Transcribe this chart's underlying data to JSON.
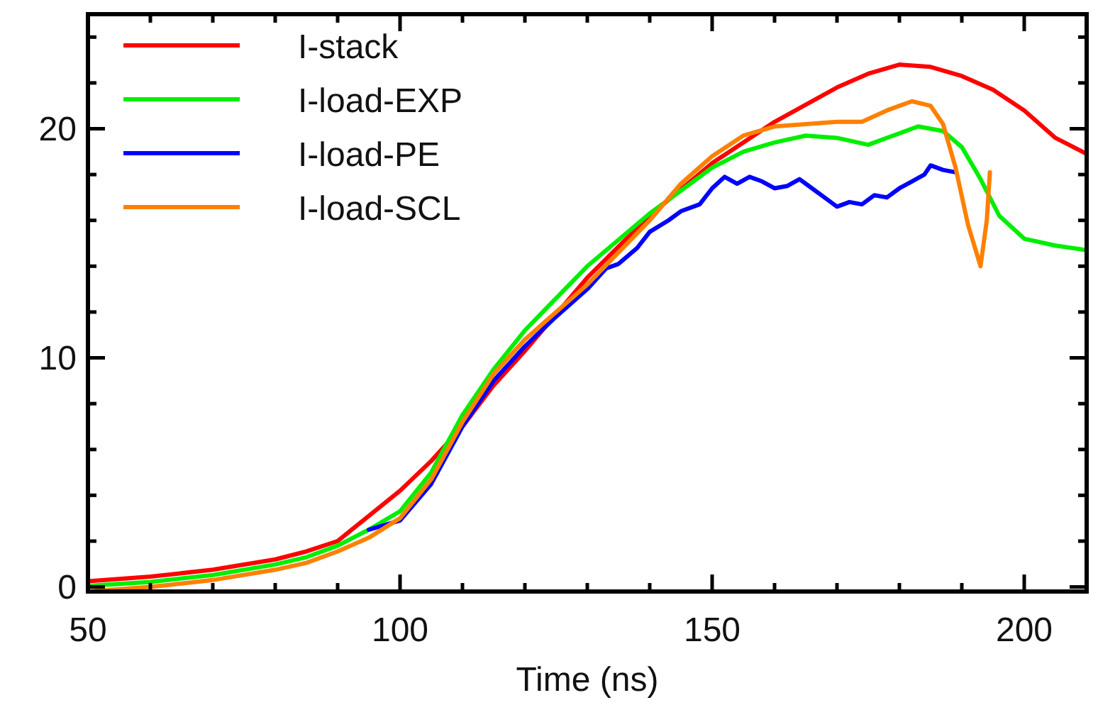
{
  "chart_data": {
    "type": "line",
    "xlabel": "Time (ns)",
    "xlim": [
      50,
      210
    ],
    "xticks": [
      50,
      {
        "value": 60,
        "label": null
      },
      {
        "value": 70,
        "label": null
      },
      {
        "value": 80,
        "label": null
      },
      {
        "value": 90,
        "label": null
      },
      100,
      {
        "value": 110,
        "label": null
      },
      {
        "value": 120,
        "label": null
      },
      {
        "value": 130,
        "label": null
      },
      {
        "value": 140,
        "label": null
      },
      150,
      {
        "value": 160,
        "label": null
      },
      {
        "value": 170,
        "label": null
      },
      {
        "value": 180,
        "label": null
      },
      {
        "value": 190,
        "label": null
      },
      200
    ],
    "ylim": [
      -0.2,
      25
    ],
    "yticks": [
      0,
      {
        "value": 2,
        "label": null
      },
      {
        "value": 4,
        "label": null
      },
      {
        "value": 6,
        "label": null
      },
      {
        "value": 8,
        "label": null
      },
      10,
      {
        "value": 12,
        "label": null
      },
      {
        "value": 14,
        "label": null
      },
      {
        "value": 16,
        "label": null
      },
      {
        "value": 18,
        "label": null
      },
      20,
      {
        "value": 22,
        "label": null
      },
      {
        "value": 24,
        "label": null
      }
    ],
    "grid": false,
    "legend": "top left",
    "marker": "none",
    "line_style": "solid",
    "series": [
      {
        "name": "I-stack",
        "color": "#ff0000",
        "x": [
          50,
          60,
          70,
          80,
          85,
          90,
          95,
          100,
          105,
          110,
          115,
          120,
          130,
          140,
          150,
          160,
          170,
          175,
          180,
          185,
          190,
          195,
          200,
          205,
          210
        ],
        "values": [
          0.25,
          0.45,
          0.75,
          1.2,
          1.55,
          2.0,
          3.1,
          4.2,
          5.5,
          7.0,
          8.8,
          10.3,
          13.5,
          16.2,
          18.5,
          20.3,
          21.8,
          22.4,
          22.8,
          22.7,
          22.3,
          21.7,
          20.8,
          19.6,
          18.9
        ]
      },
      {
        "name": "I-load-EXP",
        "color": "#00ee00",
        "x": [
          50,
          60,
          70,
          80,
          85,
          90,
          95,
          100,
          105,
          110,
          115,
          120,
          130,
          140,
          150,
          155,
          160,
          165,
          170,
          175,
          180,
          183,
          187,
          190,
          193,
          196,
          200,
          205,
          210
        ],
        "values": [
          0.05,
          0.22,
          0.52,
          0.98,
          1.3,
          1.8,
          2.5,
          3.3,
          5.0,
          7.5,
          9.5,
          11.2,
          14.0,
          16.3,
          18.3,
          19.0,
          19.4,
          19.7,
          19.6,
          19.3,
          19.8,
          20.1,
          19.9,
          19.2,
          17.8,
          16.2,
          15.2,
          14.9,
          14.7
        ]
      },
      {
        "name": "I-load-PE",
        "color": "#0000ff",
        "x": [
          95,
          100,
          105,
          110,
          115,
          120,
          125,
          130,
          133,
          135,
          138,
          140,
          143,
          145,
          148,
          150,
          152,
          154,
          156,
          158,
          160,
          162,
          164,
          166,
          168,
          170,
          172,
          174,
          176,
          178,
          180,
          182,
          184,
          185,
          187,
          189
        ],
        "values": [
          2.5,
          2.9,
          4.5,
          7.0,
          9.0,
          10.5,
          11.8,
          13.0,
          13.9,
          14.1,
          14.8,
          15.5,
          16.0,
          16.4,
          16.7,
          17.4,
          17.9,
          17.6,
          17.9,
          17.7,
          17.4,
          17.5,
          17.8,
          17.4,
          17.0,
          16.6,
          16.8,
          16.7,
          17.1,
          17.0,
          17.4,
          17.7,
          18.0,
          18.4,
          18.2,
          18.1
        ]
      },
      {
        "name": "I-load-SCL",
        "color": "#ff8000",
        "x": [
          50,
          60,
          70,
          80,
          85,
          90,
          95,
          100,
          105,
          110,
          115,
          120,
          130,
          140,
          145,
          150,
          155,
          160,
          165,
          170,
          174,
          178,
          182,
          185,
          187,
          189,
          191,
          193,
          194,
          194.5
        ],
        "values": [
          -0.2,
          0.0,
          0.3,
          0.75,
          1.05,
          1.55,
          2.15,
          3.0,
          4.7,
          7.2,
          9.3,
          10.8,
          13.2,
          16.0,
          17.6,
          18.8,
          19.7,
          20.1,
          20.2,
          20.3,
          20.3,
          20.8,
          21.2,
          21.0,
          20.2,
          18.3,
          15.8,
          14.0,
          16.0,
          18.1
        ]
      }
    ]
  }
}
